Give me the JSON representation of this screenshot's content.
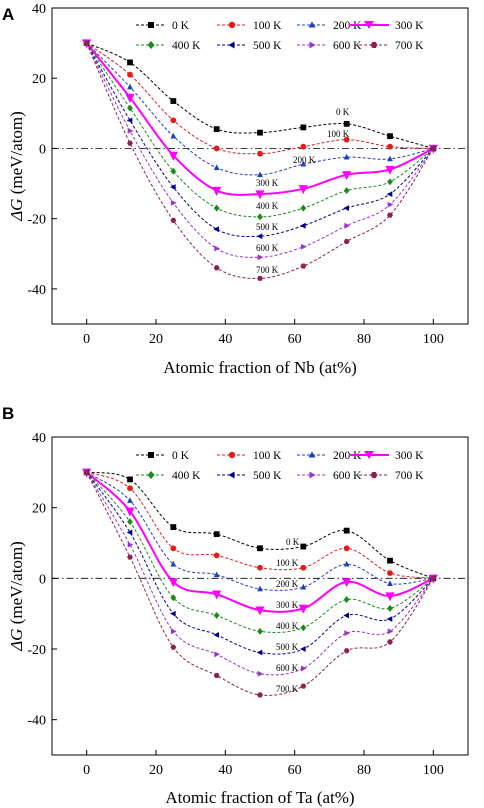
{
  "chart_data": [
    {
      "type": "line",
      "panel_label": "A",
      "xlabel": "Atomic fraction of Nb (at%)",
      "ylabel": "ΔG (meV/atom)",
      "ylabel_symbol": "ΔG",
      "ylabel_unit": " (meV/atom)",
      "xlim": [
        -10,
        110
      ],
      "ylim": [
        -50,
        40
      ],
      "xticks": [
        0,
        20,
        40,
        60,
        80,
        100
      ],
      "yticks": [
        -40,
        -20,
        0,
        20,
        40
      ],
      "reference_line": 0,
      "grid": false,
      "legend_position": "top-right",
      "x": [
        0,
        12.5,
        25,
        37.5,
        50,
        62.5,
        75,
        87.5,
        100
      ],
      "series": [
        {
          "name": "0 K",
          "color": "#000000",
          "marker": "square",
          "curve_label": "0 K",
          "values": [
            30,
            24.5,
            13.5,
            5.5,
            4.5,
            6,
            7,
            3.5,
            0
          ]
        },
        {
          "name": "100 K",
          "color": "#e41a1c",
          "marker": "circle",
          "curve_label": "100 K",
          "values": [
            30,
            21,
            8,
            0,
            -1.5,
            0.5,
            2.5,
            0.5,
            0
          ]
        },
        {
          "name": "200 K",
          "color": "#1f3fbf",
          "marker": "triangle-up",
          "curve_label": "200 K",
          "values": [
            30,
            17.5,
            3.5,
            -5.5,
            -7.5,
            -4.5,
            -2.5,
            -3,
            0
          ]
        },
        {
          "name": "300 K",
          "color": "#ff00ff",
          "marker": "triangle-down",
          "highlight": true,
          "curve_label": "300 K",
          "values": [
            30,
            14.5,
            -2,
            -12,
            -13,
            -11.5,
            -7.5,
            -6,
            0
          ]
        },
        {
          "name": "400 K",
          "color": "#1a8c1a",
          "marker": "diamond",
          "curve_label": "400 K",
          "values": [
            30,
            11.5,
            -6.5,
            -17,
            -19.5,
            -17,
            -12,
            -9.5,
            0
          ]
        },
        {
          "name": "500 K",
          "color": "#00008b",
          "marker": "triangle-left",
          "curve_label": "500 K",
          "values": [
            30,
            8,
            -11,
            -23,
            -25,
            -22,
            -17,
            -13,
            0
          ]
        },
        {
          "name": "600 K",
          "color": "#9a32cd",
          "marker": "triangle-right",
          "curve_label": "600 K",
          "values": [
            30,
            5,
            -15.5,
            -28.5,
            -31,
            -28,
            -22,
            -16,
            0
          ]
        },
        {
          "name": "700 K",
          "color": "#8b2252",
          "marker": "hexagon",
          "curve_label": "700 K",
          "values": [
            30,
            1.5,
            -20.5,
            -34,
            -37,
            -33.5,
            -26.5,
            -19,
            0
          ]
        }
      ]
    },
    {
      "type": "line",
      "panel_label": "B",
      "xlabel": "Atomic fraction of Ta (at%)",
      "ylabel": "ΔG (meV/atom)",
      "ylabel_symbol": "ΔG",
      "ylabel_unit": " (meV/atom)",
      "xlim": [
        -10,
        110
      ],
      "ylim": [
        -50,
        40
      ],
      "xticks": [
        0,
        20,
        40,
        60,
        80,
        100
      ],
      "yticks": [
        -40,
        -20,
        0,
        20,
        40
      ],
      "reference_line": 0,
      "grid": false,
      "legend_position": "top-right",
      "x": [
        0,
        12.5,
        25,
        37.5,
        50,
        62.5,
        75,
        87.5,
        100
      ],
      "series": [
        {
          "name": "0 K",
          "color": "#000000",
          "marker": "square",
          "curve_label": "0 K",
          "values": [
            30,
            28,
            14.5,
            12.5,
            8.5,
            9,
            13.5,
            5,
            0
          ]
        },
        {
          "name": "100 K",
          "color": "#e41a1c",
          "marker": "circle",
          "curve_label": "100 K",
          "values": [
            30,
            25.5,
            8.5,
            6.5,
            3,
            3,
            8.5,
            1.5,
            0
          ]
        },
        {
          "name": "200 K",
          "color": "#1f3fbf",
          "marker": "triangle-up",
          "curve_label": "200 K",
          "values": [
            30,
            22,
            4,
            1,
            -3,
            -2.5,
            4,
            -1.5,
            0
          ]
        },
        {
          "name": "300 K",
          "color": "#ff00ff",
          "marker": "triangle-down",
          "highlight": true,
          "curve_label": "300 K",
          "values": [
            30,
            19,
            -1,
            -4.5,
            -9,
            -8.5,
            -1,
            -5,
            0
          ]
        },
        {
          "name": "400 K",
          "color": "#1a8c1a",
          "marker": "diamond",
          "curve_label": "400 K",
          "values": [
            30,
            16,
            -5.5,
            -10.5,
            -15,
            -14,
            -6,
            -8.5,
            0
          ]
        },
        {
          "name": "500 K",
          "color": "#00008b",
          "marker": "triangle-left",
          "curve_label": "500 K",
          "values": [
            30,
            13,
            -10,
            -16,
            -21,
            -20,
            -10.5,
            -11.5,
            0
          ]
        },
        {
          "name": "600 K",
          "color": "#9a32cd",
          "marker": "triangle-right",
          "curve_label": "600 K",
          "values": [
            30,
            9.5,
            -15,
            -21.5,
            -27,
            -25.5,
            -15.5,
            -15,
            0
          ]
        },
        {
          "name": "700 K",
          "color": "#8b2252",
          "marker": "hexagon",
          "curve_label": "700 K",
          "values": [
            30,
            6,
            -19.5,
            -27.5,
            -33,
            -30.5,
            -20.5,
            -18,
            0
          ]
        }
      ]
    }
  ]
}
